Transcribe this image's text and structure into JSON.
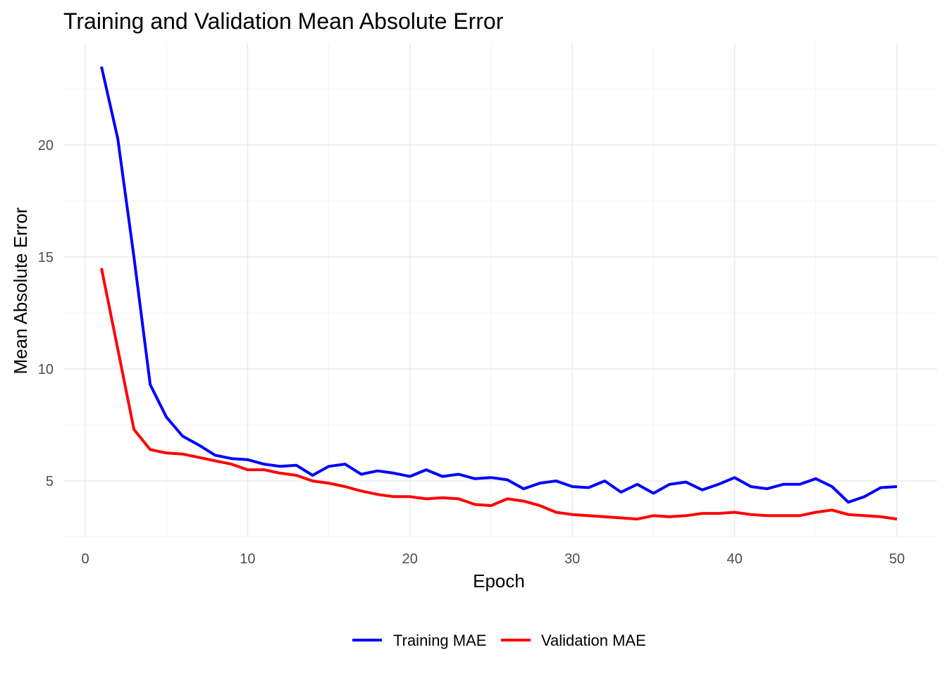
{
  "chart_data": {
    "type": "line",
    "title": "Training and Validation Mean Absolute Error",
    "xlabel": "Epoch",
    "ylabel": "Mean Absolute Error",
    "xlim": [
      -1.4,
      52.2
    ],
    "ylim": [
      2.5,
      24.5
    ],
    "x_ticks": [
      0,
      10,
      20,
      30,
      40,
      50
    ],
    "y_ticks": [
      5,
      10,
      15,
      20
    ],
    "grid": true,
    "legend_position": "bottom",
    "x": [
      1,
      2,
      3,
      4,
      5,
      6,
      7,
      8,
      9,
      10,
      11,
      12,
      13,
      14,
      15,
      16,
      17,
      18,
      19,
      20,
      21,
      22,
      23,
      24,
      25,
      26,
      27,
      28,
      29,
      30,
      31,
      32,
      33,
      34,
      35,
      36,
      37,
      38,
      39,
      40,
      41,
      42,
      43,
      44,
      45,
      46,
      47,
      48,
      49,
      50
    ],
    "series": [
      {
        "name": "Training MAE",
        "color": "#0000ff",
        "values": [
          23.5,
          20.3,
          15.0,
          9.3,
          7.85,
          7.0,
          6.6,
          6.15,
          6.0,
          5.95,
          5.75,
          5.65,
          5.7,
          5.25,
          5.65,
          5.75,
          5.3,
          5.45,
          5.35,
          5.2,
          5.5,
          5.2,
          5.3,
          5.1,
          5.15,
          5.05,
          4.65,
          4.9,
          5.0,
          4.75,
          4.7,
          5.0,
          4.5,
          4.85,
          4.45,
          4.85,
          4.95,
          4.6,
          4.85,
          5.15,
          4.75,
          4.65,
          4.85,
          4.85,
          5.1,
          4.75,
          4.05,
          4.3,
          4.7,
          4.75
        ]
      },
      {
        "name": "Validation MAE",
        "color": "#ff0000",
        "values": [
          14.5,
          10.9,
          7.3,
          6.4,
          6.25,
          6.2,
          6.05,
          5.9,
          5.75,
          5.5,
          5.5,
          5.35,
          5.25,
          5.0,
          4.9,
          4.75,
          4.55,
          4.4,
          4.3,
          4.3,
          4.2,
          4.25,
          4.2,
          3.95,
          3.9,
          4.2,
          4.1,
          3.9,
          3.6,
          3.5,
          3.45,
          3.4,
          3.35,
          3.3,
          3.45,
          3.4,
          3.45,
          3.55,
          3.55,
          3.6,
          3.5,
          3.45,
          3.45,
          3.45,
          3.6,
          3.7,
          3.5,
          3.45,
          3.4,
          3.3
        ]
      }
    ]
  }
}
